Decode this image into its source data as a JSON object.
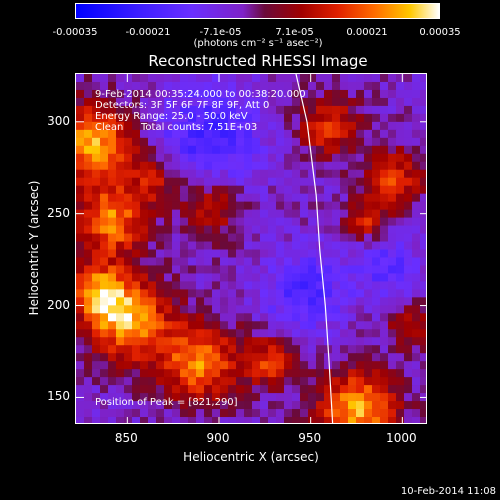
{
  "colorbar": {
    "ticks": [
      "-0.00035",
      "-0.00021",
      "-7.1e-05",
      "7.1e-05",
      "0.00021",
      "0.00035"
    ],
    "tick_values": [
      -0.00035,
      -0.00021,
      -7.1e-05,
      7.1e-05,
      0.00021,
      0.00035
    ],
    "range": [
      -0.00035,
      0.00035
    ]
  },
  "units_label": "(photons cm⁻² s⁻¹ asec⁻²)",
  "chart_data": {
    "type": "heatmap",
    "title": "Reconstructed RHESSI Image",
    "xlabel": "Heliocentric X (arcsec)",
    "ylabel": "Heliocentric Y (arcsec)",
    "xlim": [
      822,
      1014
    ],
    "ylim": [
      135,
      326
    ],
    "x_ticks": [
      850,
      900,
      950,
      1000
    ],
    "y_ticks": [
      150,
      200,
      250,
      300
    ],
    "limb_line": [
      [
        942,
        326
      ],
      [
        948,
        300
      ],
      [
        953,
        260
      ],
      [
        955,
        230
      ],
      [
        958,
        200
      ],
      [
        960,
        170
      ],
      [
        962,
        135
      ]
    ],
    "peak": [
      821,
      290
    ],
    "annotations": {
      "time_range": "9-Feb-2014 00:35:24.000 to 00:38:20.000",
      "detectors": "Detectors: 3F 5F 6F 7F 8F 9F, Att 0",
      "energy": "Energy Range: 25.0 - 50.0 keV",
      "algorithm": "Clean",
      "counts": "Total counts: 7.51E+03",
      "peak_text": "Position of Peak = [821,290]"
    }
  },
  "footer": "10-Feb-2014 11:08"
}
